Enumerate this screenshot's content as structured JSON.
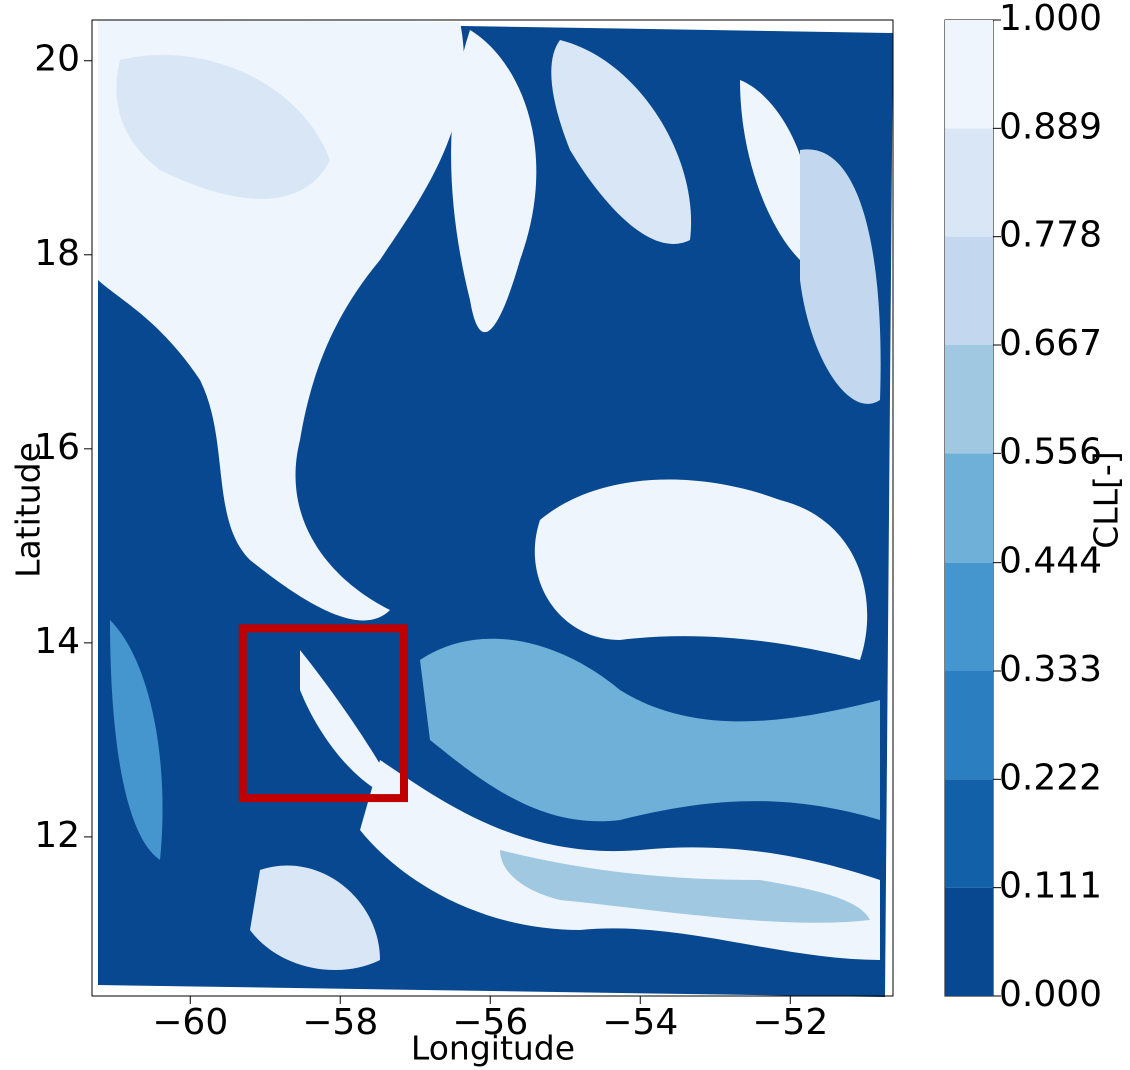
{
  "chart_data": {
    "type": "contour",
    "x_label": "Longitude",
    "y_label": "Latitude",
    "xlim": [
      -61.31,
      -50.63
    ],
    "ylim": [
      10.36,
      20.42
    ],
    "xticks": [
      {
        "value": -60,
        "label": "−60"
      },
      {
        "value": -58,
        "label": "−58"
      },
      {
        "value": -56,
        "label": "−56"
      },
      {
        "value": -54,
        "label": "−54"
      },
      {
        "value": -52,
        "label": "−52"
      }
    ],
    "yticks": [
      12,
      14,
      16,
      18,
      20
    ],
    "colorbar": {
      "label": "CLL[-]",
      "levels": [
        {
          "value": 0,
          "label": "0.000"
        },
        {
          "value": 0.111,
          "label": "0.111"
        },
        {
          "value": 0.222,
          "label": "0.222"
        },
        {
          "value": 0.333,
          "label": "0.333"
        },
        {
          "value": 0.444,
          "label": "0.444"
        },
        {
          "value": 0.556,
          "label": "0.556"
        },
        {
          "value": 0.667,
          "label": "0.667"
        },
        {
          "value": 0.778,
          "label": "0.778"
        },
        {
          "value": 0.889,
          "label": "0.889"
        },
        {
          "value": 1,
          "label": "1.000"
        }
      ],
      "colors": [
        "#084891",
        "#1261a8",
        "#2b7fc0",
        "#4596ce",
        "#6fb0d8",
        "#a0c8e1",
        "#c3d8ee",
        "#d8e6f5",
        "#eef5fc"
      ]
    },
    "box": {
      "x": [
        -59.3,
        -57.15
      ],
      "y": [
        12.4,
        14.15
      ],
      "color": "#c00000"
    }
  }
}
